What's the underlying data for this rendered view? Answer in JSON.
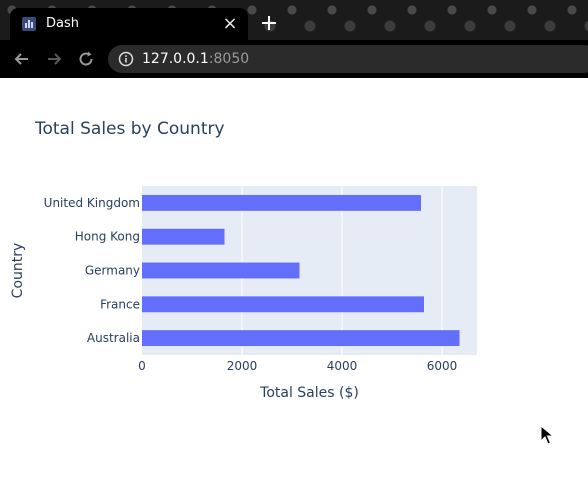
{
  "browser": {
    "tab": {
      "title": "Dash",
      "favicon": "dash-bar-chart-icon",
      "close": "×"
    },
    "address": {
      "host": "127.0.0.1",
      "port": ":8050"
    }
  },
  "chart_data": {
    "type": "bar",
    "orientation": "horizontal",
    "title": "Total Sales by Country",
    "xlabel": "Total Sales ($)",
    "ylabel": "Country",
    "categories": [
      "Australia",
      "France",
      "Germany",
      "Hong Kong",
      "United Kingdom"
    ],
    "values": [
      6350,
      5640,
      3150,
      1650,
      5580
    ],
    "xlim": [
      0,
      6700
    ],
    "xticks": [
      0,
      2000,
      4000,
      6000
    ],
    "grid": true,
    "colors": {
      "bar": "#636efa",
      "plot_bg": "#e5ecf6",
      "grid": "#ffffff",
      "text": "#2a3f5f"
    }
  }
}
